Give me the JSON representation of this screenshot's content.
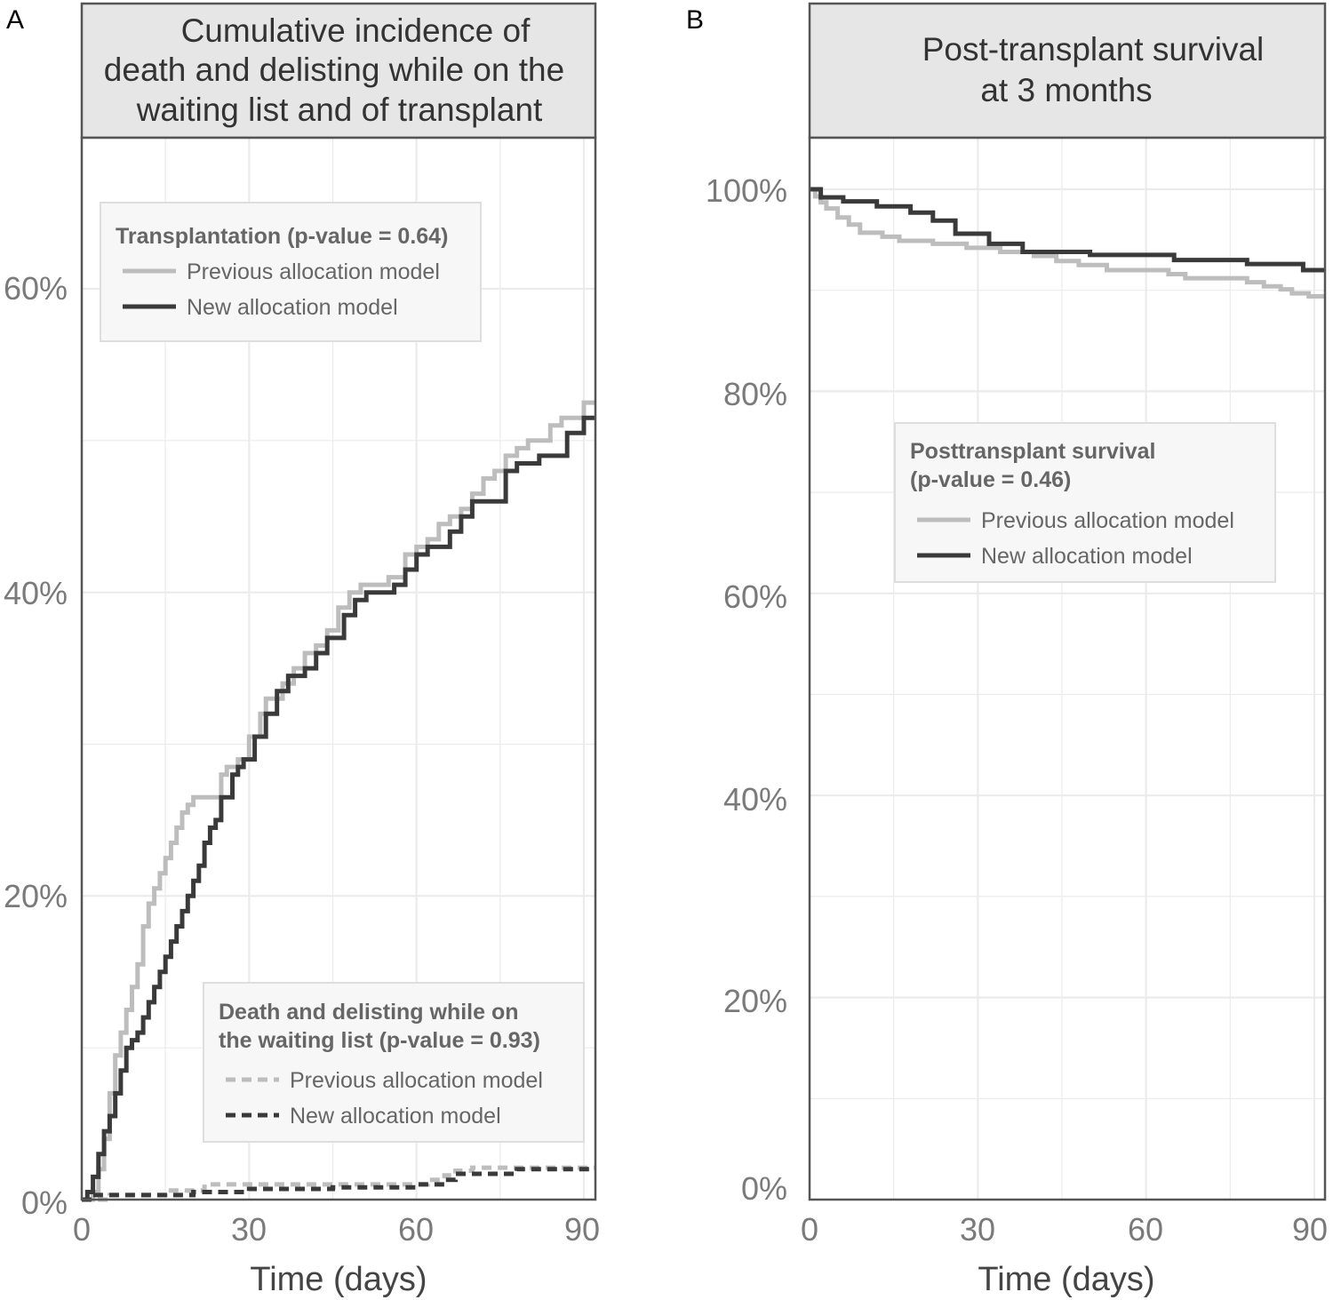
{
  "colors": {
    "previous": "#bdbdbd",
    "new": "#3a3a3a",
    "grid": "#ebebeb",
    "strip_fill": "#e6e6e6",
    "border": "#555555",
    "legend_fill": "#f7f7f7",
    "legend_border": "#dedede"
  },
  "chart_data": [
    {
      "panel": "A",
      "type": "line",
      "step": true,
      "title_lines": [
        "Cumulative incidence of",
        "death and delisting while on the",
        "waiting list and of transplant"
      ],
      "xlabel": "Time (days)",
      "ylabel": "",
      "xlim": [
        0,
        92
      ],
      "ylim": [
        0,
        70
      ],
      "x_ticks": [
        0,
        30,
        60,
        90
      ],
      "x_tick_labels": [
        "0",
        "30",
        "60",
        "90"
      ],
      "y_ticks": [
        0,
        20,
        40,
        60
      ],
      "y_tick_labels": [
        "0%",
        "20%",
        "40%",
        "60%"
      ],
      "grid": true,
      "legends": [
        {
          "placement": "top-left",
          "title_lines": [
            "Transplantation (p-value = 0.64)"
          ],
          "entries": [
            {
              "label": "Previous allocation model",
              "series": "transplant-previous"
            },
            {
              "label": "New allocation model",
              "series": "transplant-new"
            }
          ]
        },
        {
          "placement": "bottom-right",
          "title_lines": [
            "Death and delisting while on",
            "the waiting list (p-value = 0.93)"
          ],
          "entries": [
            {
              "label": "Previous allocation model",
              "series": "death-previous"
            },
            {
              "label": "New allocation model",
              "series": "death-new"
            }
          ]
        }
      ],
      "series": [
        {
          "id": "transplant-previous",
          "style": "solid",
          "color_key": "previous",
          "x": [
            0,
            2,
            3,
            4,
            5,
            6,
            7,
            8,
            9,
            10,
            11,
            12,
            13,
            14,
            15,
            16,
            17,
            18,
            19,
            20,
            21,
            22,
            25,
            26,
            28,
            30,
            32,
            33,
            36,
            38,
            40,
            42,
            44,
            46,
            48,
            50,
            52,
            55,
            58,
            60,
            62,
            64,
            66,
            68,
            70,
            72,
            74,
            76,
            78,
            80,
            84,
            86,
            90,
            92
          ],
          "y": [
            0,
            0.5,
            2,
            4,
            7,
            9.5,
            11,
            12.5,
            14,
            15.5,
            18,
            19.5,
            20.5,
            21.5,
            22.5,
            23.5,
            24.5,
            25.5,
            26,
            26.5,
            26.5,
            26.5,
            28,
            28.5,
            29,
            30.5,
            32,
            33,
            34,
            35,
            36,
            36.5,
            37.5,
            39,
            40,
            40.5,
            40.5,
            41,
            42.5,
            43,
            43.5,
            44.5,
            45,
            45.5,
            46.5,
            47.5,
            48,
            49,
            49.5,
            50,
            51,
            51.5,
            52.5,
            52.5
          ]
        },
        {
          "id": "transplant-new",
          "style": "solid",
          "color_key": "new",
          "x": [
            0,
            1,
            2,
            3,
            4,
            5,
            6,
            7,
            8,
            9,
            10,
            11,
            12,
            13,
            14,
            15,
            16,
            17,
            18,
            19,
            20,
            21,
            22,
            23,
            24,
            25,
            27,
            28,
            29,
            31,
            33,
            35,
            37,
            40,
            42,
            44,
            47,
            49,
            51,
            53,
            56,
            58,
            60,
            62,
            66,
            68,
            70,
            74,
            76,
            78,
            82,
            87,
            90,
            92
          ],
          "y": [
            0,
            0.5,
            1.5,
            3,
            4.5,
            5.5,
            7,
            8.5,
            10,
            10.5,
            11,
            12,
            13,
            14,
            15,
            16,
            17,
            18,
            19,
            20,
            21,
            22,
            23.5,
            24.5,
            25,
            26.5,
            28,
            28.5,
            29,
            30.5,
            32,
            33.5,
            34.5,
            35,
            36,
            37,
            38.5,
            39.5,
            40,
            40,
            40.5,
            41.5,
            42.5,
            43,
            44,
            45,
            46,
            46,
            48,
            48.5,
            49,
            50.5,
            51.5,
            51.5
          ]
        },
        {
          "id": "death-previous",
          "style": "dashed",
          "color_key": "previous",
          "x": [
            0,
            5,
            15,
            22,
            35,
            50,
            62,
            65,
            67,
            70,
            75,
            80,
            92
          ],
          "y": [
            0,
            0.3,
            0.6,
            1.0,
            1.0,
            1.0,
            1.3,
            1.6,
            1.9,
            2.1,
            2.1,
            2.1,
            2.1
          ]
        },
        {
          "id": "death-new",
          "style": "dashed",
          "color_key": "new",
          "x": [
            0,
            2,
            12,
            20,
            30,
            45,
            60,
            65,
            67,
            75,
            78,
            92
          ],
          "y": [
            0,
            0.3,
            0.3,
            0.5,
            0.7,
            0.8,
            1.0,
            1.3,
            1.7,
            1.7,
            2.0,
            2.0
          ]
        }
      ]
    },
    {
      "panel": "B",
      "type": "line",
      "step": true,
      "title_lines": [
        "Post-transplant survival",
        "at 3 months"
      ],
      "xlabel": "Time (days)",
      "ylabel": "",
      "xlim": [
        0,
        92
      ],
      "ylim": [
        0,
        104
      ],
      "x_ticks": [
        0,
        30,
        60,
        90
      ],
      "x_tick_labels": [
        "0",
        "30",
        "60",
        "90"
      ],
      "y_ticks": [
        0,
        20,
        40,
        60,
        80,
        100
      ],
      "y_tick_labels": [
        "0%",
        "20%",
        "40%",
        "60%",
        "80%",
        "100%"
      ],
      "grid": true,
      "legends": [
        {
          "placement": "center-right",
          "title_lines": [
            "Posttransplant survival",
            "(p-value = 0.46)"
          ],
          "entries": [
            {
              "label": "Previous allocation model",
              "series": "survival-previous"
            },
            {
              "label": "New allocation model",
              "series": "survival-new"
            }
          ]
        }
      ],
      "series": [
        {
          "id": "survival-previous",
          "style": "solid",
          "color_key": "previous",
          "x": [
            0,
            1,
            2,
            3,
            5,
            7,
            9,
            13,
            16,
            22,
            28,
            34,
            40,
            44,
            48,
            53,
            64,
            67,
            78,
            81,
            84,
            86,
            89,
            92
          ],
          "y": [
            100,
            99.3,
            98.7,
            98.1,
            97.2,
            96.5,
            95.7,
            95.3,
            94.9,
            94.6,
            94.2,
            93.8,
            93.4,
            92.9,
            92.5,
            92.0,
            91.6,
            91.2,
            90.8,
            90.4,
            90.1,
            89.7,
            89.4,
            89.4
          ]
        },
        {
          "id": "survival-new",
          "style": "solid",
          "color_key": "new",
          "x": [
            0,
            2,
            6,
            12,
            18,
            22,
            26,
            32,
            38,
            50,
            65,
            78,
            88,
            92
          ],
          "y": [
            100,
            99.2,
            98.8,
            98.3,
            97.7,
            96.9,
            95.6,
            94.6,
            93.8,
            93.5,
            93.0,
            92.6,
            92.0,
            92.0
          ]
        }
      ]
    }
  ]
}
